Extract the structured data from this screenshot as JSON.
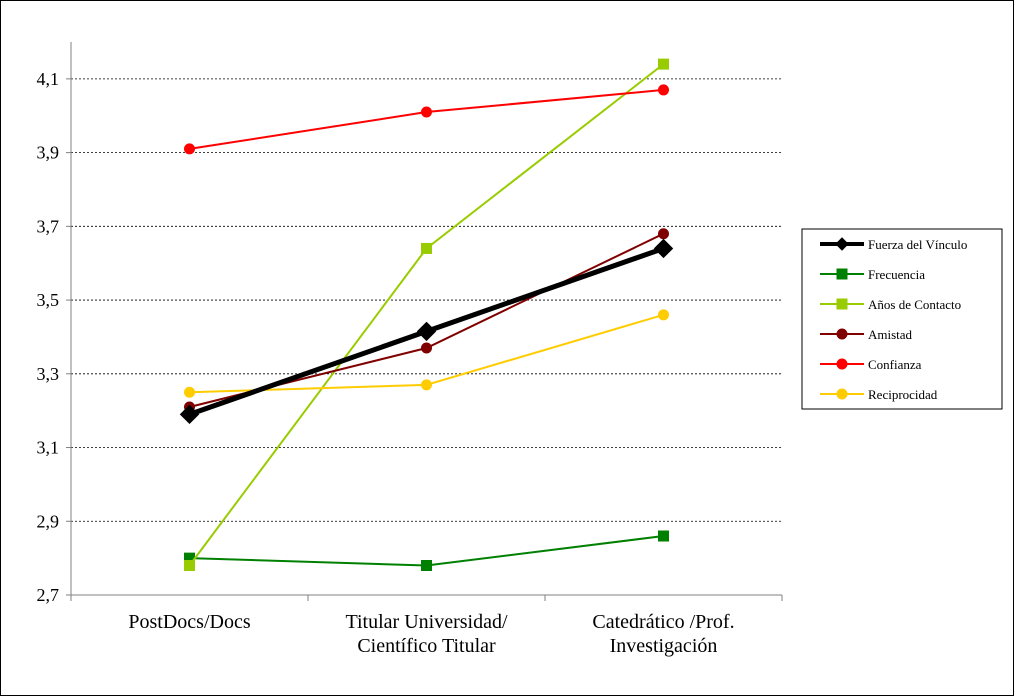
{
  "chart_data": {
    "type": "line",
    "title": "",
    "xlabel": "",
    "ylabel": "",
    "categories": [
      [
        "PostDocs/Docs"
      ],
      [
        "Titular Universidad/",
        "Científico Titular"
      ],
      [
        "Catedrático /Prof.",
        "Investigación"
      ]
    ],
    "ylim": [
      2.7,
      4.2
    ],
    "yticks": [
      2.7,
      2.9,
      3.1,
      3.3,
      3.5,
      3.7,
      3.9,
      4.1
    ],
    "ytick_labels": [
      "2,7",
      "2,9",
      "3,1",
      "3,3",
      "3,5",
      "3,7",
      "3,9",
      "4,1"
    ],
    "grid": "horizontal dashed",
    "legend_position": "right",
    "series": [
      {
        "name": "Fuerza del Vínculo",
        "values": [
          3.19,
          3.415,
          3.64
        ],
        "color": "#000000",
        "marker": "diamond",
        "bold": true
      },
      {
        "name": "Frecuencia",
        "values": [
          2.8,
          2.78,
          2.86
        ],
        "color": "#008000",
        "marker": "square"
      },
      {
        "name": "Años de Contacto",
        "values": [
          2.78,
          3.64,
          4.14
        ],
        "color": "#99CC00",
        "marker": "square"
      },
      {
        "name": "Amistad",
        "values": [
          3.21,
          3.37,
          3.68
        ],
        "color": "#800000",
        "marker": "circle"
      },
      {
        "name": "Confianza",
        "values": [
          3.91,
          4.01,
          4.07
        ],
        "color": "#FF0000",
        "marker": "circle"
      },
      {
        "name": "Reciprocidad",
        "values": [
          3.25,
          3.27,
          3.46
        ],
        "color": "#FFCC00",
        "marker": "circle"
      }
    ]
  }
}
